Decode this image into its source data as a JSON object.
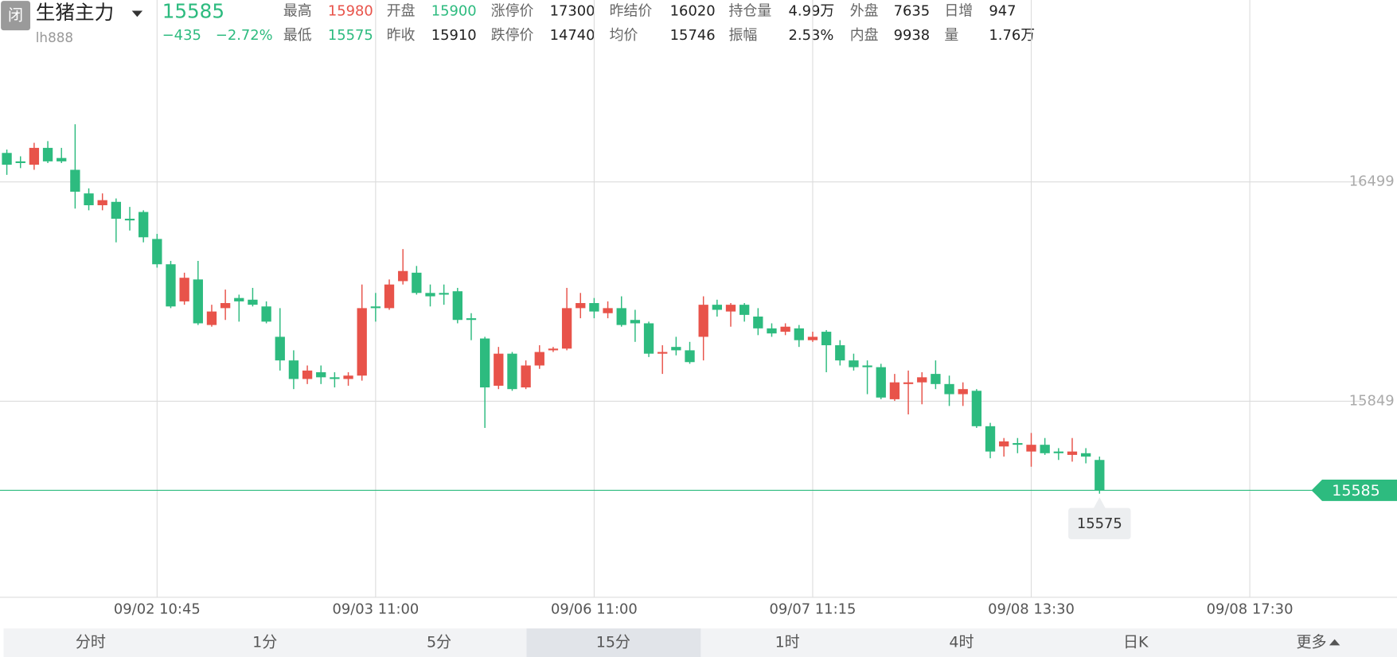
{
  "header": {
    "badge": "闭",
    "title": "生猪主力",
    "code": "lh888",
    "price": "15585",
    "change": "−435",
    "change_pct": "−2.72%",
    "quote_rows": [
      [
        {
          "label": "最高",
          "value": "15980",
          "color": "#e8534a"
        },
        {
          "label": "开盘",
          "value": "15900",
          "color": "#2dbb7f"
        },
        {
          "label": "涨停价",
          "value": "17300"
        },
        {
          "label": "昨结价",
          "value": "16020"
        },
        {
          "label": "持仓量",
          "value": "4.99万"
        },
        {
          "label": "外盘",
          "value": "7635"
        },
        {
          "label": "日增",
          "value": "947"
        }
      ],
      [
        {
          "label": "最低",
          "value": "15575",
          "color": "#2dbb7f"
        },
        {
          "label": "昨收",
          "value": "15910"
        },
        {
          "label": "跌停价",
          "value": "14740"
        },
        {
          "label": "均价",
          "value": "15746"
        },
        {
          "label": "振幅",
          "value": "2.53%"
        },
        {
          "label": "内盘",
          "value": "9938"
        },
        {
          "label": "量",
          "value": "1.76万"
        }
      ]
    ]
  },
  "chart_data": {
    "type": "candlestick",
    "up_color": "#e8534a",
    "down_color": "#2dbb7f",
    "open": [
      16585,
      16560,
      16550,
      16600,
      16570,
      16535,
      16465,
      16430,
      16440,
      16390,
      16410,
      16330,
      16255,
      16145,
      16210,
      16075,
      16125,
      16155,
      16150,
      16130,
      16040,
      15970,
      15915,
      15935,
      15920,
      15915,
      15925,
      16130,
      16125,
      16205,
      16230,
      16170,
      16170,
      16175,
      16095,
      16035,
      15895,
      15990,
      15890,
      15955,
      16000,
      16005,
      16125,
      16140,
      16110,
      16125,
      16090,
      16080,
      15990,
      16010,
      16000,
      16040,
      16135,
      16115,
      16135,
      16100,
      16065,
      16055,
      16065,
      16030,
      16055,
      16015,
      15970,
      15955,
      15950,
      15855,
      15900,
      15905,
      15930,
      15900,
      15870,
      15880,
      15775,
      15715,
      15725,
      15700,
      15720,
      15700,
      15690,
      15695,
      15675
    ],
    "high": [
      16595,
      16575,
      16615,
      16620,
      16600,
      16670,
      16480,
      16465,
      16450,
      16425,
      16415,
      16345,
      16265,
      16230,
      16265,
      16135,
      16180,
      16165,
      16185,
      16145,
      16125,
      16000,
      15955,
      15955,
      15935,
      15935,
      16195,
      16170,
      16210,
      16300,
      16250,
      16195,
      16195,
      16185,
      16110,
      16040,
      16010,
      15995,
      15970,
      16015,
      16010,
      16185,
      16170,
      16155,
      16145,
      16160,
      16120,
      16085,
      16015,
      16040,
      16025,
      16160,
      16150,
      16140,
      16140,
      16125,
      16080,
      16080,
      16075,
      16055,
      16060,
      16030,
      15990,
      15970,
      15960,
      15930,
      15940,
      15935,
      15970,
      15925,
      15905,
      15885,
      15785,
      15740,
      15740,
      15755,
      15740,
      15710,
      15740,
      15710,
      15685
    ],
    "low": [
      16520,
      16540,
      16535,
      16555,
      16555,
      16420,
      16415,
      16415,
      16320,
      16355,
      16320,
      16245,
      16125,
      16135,
      16075,
      16070,
      16090,
      16085,
      16130,
      16080,
      15940,
      15885,
      15900,
      15900,
      15890,
      15895,
      15910,
      16085,
      16120,
      16195,
      16165,
      16130,
      16135,
      16080,
      16030,
      15770,
      15885,
      15880,
      15885,
      15945,
      15995,
      16000,
      16095,
      16095,
      16095,
      16070,
      16025,
      15980,
      15930,
      15985,
      15960,
      15970,
      16100,
      16070,
      16085,
      16045,
      16040,
      16045,
      16010,
      16025,
      15935,
      15955,
      15940,
      15870,
      15855,
      15850,
      15810,
      15840,
      15885,
      15835,
      15835,
      15770,
      15680,
      15685,
      15695,
      15655,
      15690,
      15675,
      15670,
      15665,
      15575
    ],
    "close": [
      16550,
      16555,
      16600,
      16560,
      16560,
      16470,
      16430,
      16445,
      16390,
      16385,
      16335,
      16255,
      16130,
      16215,
      16080,
      16115,
      16140,
      16145,
      16135,
      16085,
      15970,
      15915,
      15940,
      15920,
      15915,
      15925,
      16125,
      16125,
      16195,
      16235,
      16170,
      16160,
      16165,
      16090,
      16090,
      15890,
      15990,
      15885,
      15955,
      15995,
      16005,
      16125,
      16140,
      16115,
      16125,
      16075,
      16080,
      15990,
      15995,
      16000,
      15965,
      16135,
      16120,
      16135,
      16105,
      16065,
      16050,
      16070,
      16030,
      16040,
      16015,
      15970,
      15950,
      15950,
      15860,
      15905,
      15905,
      15920,
      15900,
      15870,
      15885,
      15775,
      15700,
      15730,
      15720,
      15720,
      15695,
      15695,
      15700,
      15685,
      15585
    ],
    "xlim": [
      -0.5,
      99.3
    ],
    "xticks": [
      {
        "value": 11,
        "label": "09/02 10:45"
      },
      {
        "value": 27,
        "label": "09/03 11:00"
      },
      {
        "value": 43,
        "label": "09/06 11:00"
      },
      {
        "value": 59,
        "label": "09/07 11:15"
      },
      {
        "value": 75,
        "label": "09/08 13:30"
      },
      {
        "value": 91,
        "label": "09/08 17:30"
      }
    ],
    "ylim": [
      15268,
      16959
    ],
    "yticks": [
      15849,
      16499
    ],
    "grid": true,
    "last_price": 15585,
    "last_price_color": "#2dbb7f",
    "min_marker": 15575
  },
  "tabs": {
    "items": [
      "分时",
      "1分",
      "5分",
      "15分",
      "1时",
      "4时",
      "日K",
      "更多"
    ],
    "active": 3
  }
}
